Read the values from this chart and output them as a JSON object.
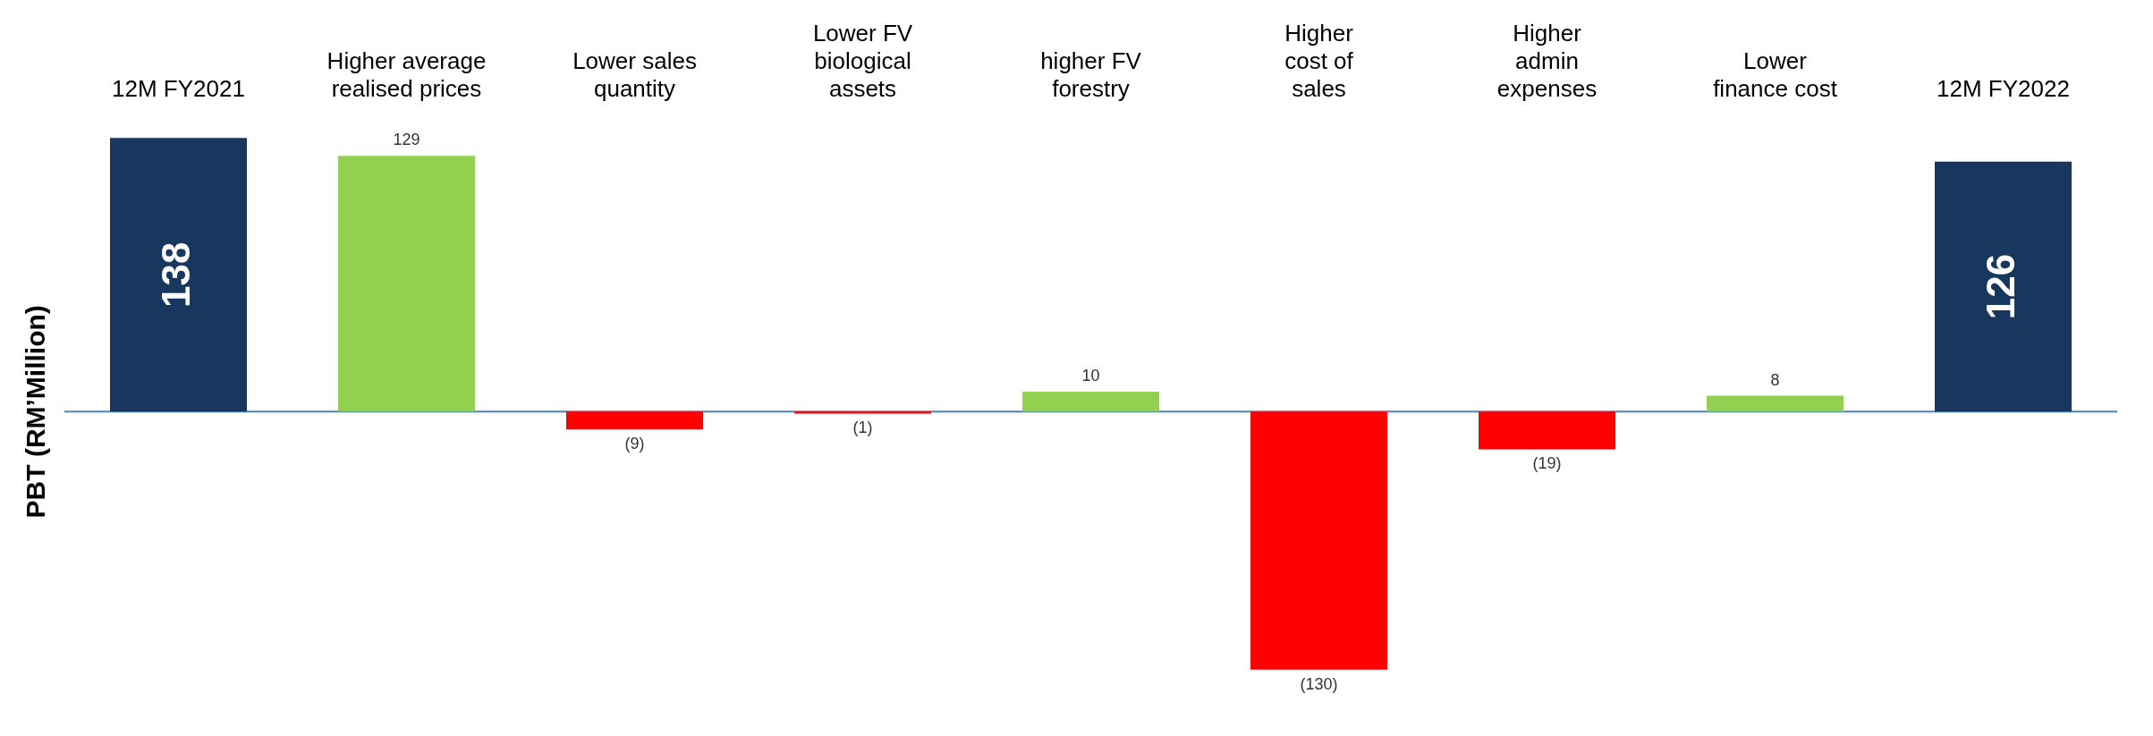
{
  "chart_data": {
    "type": "bar",
    "ylabel": "PBT (RM’Million)",
    "categories": [
      "12M FY2021",
      "Higher average\nrealised prices",
      "Lower sales\nquantity",
      "Lower FV\nbiological\nassets",
      "higher FV\nforestry",
      "Higher\ncost of\nsales",
      "Higher\nadmin\nexpenses",
      "Lower\nfinance cost",
      "12M FY2022"
    ],
    "values": [
      138,
      129,
      -9,
      -1,
      10,
      -130,
      -19,
      8,
      126
    ],
    "colors": [
      "#17375e",
      "#92d050",
      "#ff0000",
      "#ff0000",
      "#92d050",
      "#ff0000",
      "#ff0000",
      "#92d050",
      "#17375e"
    ],
    "value_labels": [
      "138",
      "129",
      "(9)",
      "(1)",
      "10",
      "(130)",
      "(19)",
      "8",
      "126"
    ],
    "ref_lines": [
      {
        "axis": "y",
        "value": 0,
        "color": "#4f81bd"
      }
    ],
    "grid": false,
    "legend": false
  }
}
